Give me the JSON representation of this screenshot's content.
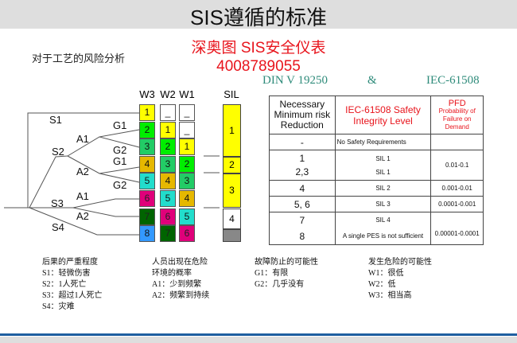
{
  "title": "SIS遵循的标准",
  "brand": {
    "line1": "深奥图 SIS安全仪表",
    "line2": "4008789055"
  },
  "subtitle": "对于工艺的风险分析",
  "standards": {
    "left": "DIN V 19250",
    "amp": "&",
    "right": "IEC-61508"
  },
  "graph": {
    "columns": [
      "W3",
      "W2",
      "W1"
    ],
    "sil_header": "SIL",
    "labels": {
      "s1": "S1",
      "s2": "S2",
      "s3": "S3",
      "s4": "S4",
      "g1a": "G1",
      "g2a": "G2",
      "g1b": "G1",
      "g2b": "G2",
      "a1a": "A1",
      "a2a": "A2",
      "a1b": "A1",
      "a2b": "A2"
    },
    "w3": [
      "1",
      "2",
      "3",
      "4",
      "5",
      "6",
      "7",
      "8"
    ],
    "w2": [
      "_",
      "1",
      "2",
      "3",
      "4",
      "5",
      "6",
      "7"
    ],
    "w1": [
      "_",
      "_",
      "1",
      "2",
      "3",
      "4",
      "5",
      "6"
    ],
    "sil": [
      "1",
      "2",
      "3",
      "4",
      ""
    ],
    "colors": {
      "1": "#ffff00",
      "2": "#00ee00",
      "3": "#22cc66",
      "4": "#e6b800",
      "5": "#22ddcc",
      "6": "#e0007a",
      "7": "#006400",
      "8": "#3399ff",
      "_": "#ffffff",
      "sil_none": "#888888"
    }
  },
  "table": {
    "headers": [
      "Necessary Minimum risk Reduction",
      "IEC-61508 Safety Integrity Level",
      "PFD"
    ],
    "pfd_sub": "Probability of Failure on Demand",
    "rows": [
      {
        "rr": "-",
        "sil": "No Safety Requirements",
        "pfd": ""
      },
      {
        "rr": "1",
        "sil": "SIL 1",
        "rr2": "2,3",
        "sil2": "SIL 1",
        "pfd": "0.01-0.1"
      },
      {
        "rr": "4",
        "sil": "SIL 2",
        "pfd": "0.001-0.01"
      },
      {
        "rr": "5, 6",
        "sil": "SIL 3",
        "pfd": "0.0001-0.001"
      },
      {
        "rr": "7",
        "sil": "SIL 4",
        "rr2": "8",
        "sil2": "A single PES is not sufficient",
        "pfd": "0.00001-0.0001"
      }
    ]
  },
  "legend": [
    {
      "title": "后果的严重程度",
      "items": [
        "S1：轻微伤害",
        "S2：1人死亡",
        "S3：超过1人死亡",
        "S4：灾难"
      ]
    },
    {
      "title": "人员出现在危险",
      "title2": "环境的概率",
      "items": [
        "A1：少到频繁",
        "A2：频繁到持续"
      ]
    },
    {
      "title": "故障防止的可能性",
      "items": [
        "G1：有限",
        "G2：几乎没有"
      ]
    },
    {
      "title": "发生危险的可能性",
      "items": [
        "W1：很低",
        "W2：低",
        "W3：相当高"
      ]
    }
  ]
}
